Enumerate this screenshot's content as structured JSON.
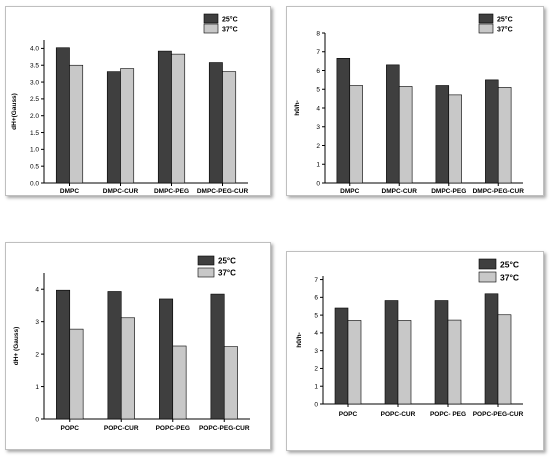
{
  "colors": {
    "series_25": "#3f3f3f",
    "series_37": "#c8c8c8"
  },
  "chart_data": [
    {
      "type": "bar",
      "categories": [
        "DMPC",
        "DMPC-CUR",
        "DMPC-PEG",
        "DMPC-PEG-CUR"
      ],
      "series": [
        {
          "name": "25°C",
          "values": [
            4.02,
            3.31,
            3.92,
            3.58
          ]
        },
        {
          "name": "37°C",
          "values": [
            3.5,
            3.4,
            3.83,
            3.31
          ]
        }
      ],
      "ylabel": "dH+(Gauss)",
      "ylim": [
        0,
        4.25
      ],
      "yticks": [
        "0.0",
        "0.5",
        "1.0",
        "1.5",
        "2.0",
        "2.5",
        "3.0",
        "3.5",
        "4.0"
      ],
      "legend_position": "top-right",
      "grid": false
    },
    {
      "type": "bar",
      "categories": [
        "DMPC",
        "DMPC-CUR",
        "DMPC-PEG",
        "DMPC-PEG-CUR"
      ],
      "series": [
        {
          "name": "25°C",
          "values": [
            6.65,
            6.3,
            5.2,
            5.5
          ]
        },
        {
          "name": "37°C",
          "values": [
            5.2,
            5.15,
            4.7,
            5.1
          ]
        }
      ],
      "ylabel": "h0/h-",
      "ylim": [
        0,
        8
      ],
      "yticks": [
        "0",
        "1",
        "2",
        "3",
        "4",
        "5",
        "6",
        "7",
        "8"
      ],
      "legend_position": "top-right",
      "grid": false
    },
    {
      "type": "bar",
      "categories": [
        "POPC",
        "POPC-CUR",
        "POPC-PEG",
        "POPC-PEG-CUR"
      ],
      "series": [
        {
          "name": "25°C",
          "values": [
            3.97,
            3.93,
            3.7,
            3.85
          ]
        },
        {
          "name": "37°C",
          "values": [
            2.77,
            3.12,
            2.25,
            2.23
          ]
        }
      ],
      "ylabel": "dH+ (Gauss)",
      "ylim": [
        0,
        4.5
      ],
      "yticks": [
        "0",
        "1",
        "2",
        "3",
        "4"
      ],
      "legend_position": "top-right",
      "grid": false
    },
    {
      "type": "bar",
      "categories": [
        "POPC",
        "POPC-CUR",
        "POPC- PEG",
        "POPC-PEG-CUR"
      ],
      "series": [
        {
          "name": "25°C",
          "values": [
            5.4,
            5.82,
            5.82,
            6.2
          ]
        },
        {
          "name": "37°C",
          "values": [
            4.7,
            4.7,
            4.72,
            5.02
          ]
        }
      ],
      "ylabel": "h0/h-",
      "ylim": [
        0,
        7.2
      ],
      "yticks": [
        "0",
        "1",
        "2",
        "3",
        "4",
        "5",
        "6",
        "7"
      ],
      "legend_position": "top-right",
      "grid": false
    }
  ]
}
